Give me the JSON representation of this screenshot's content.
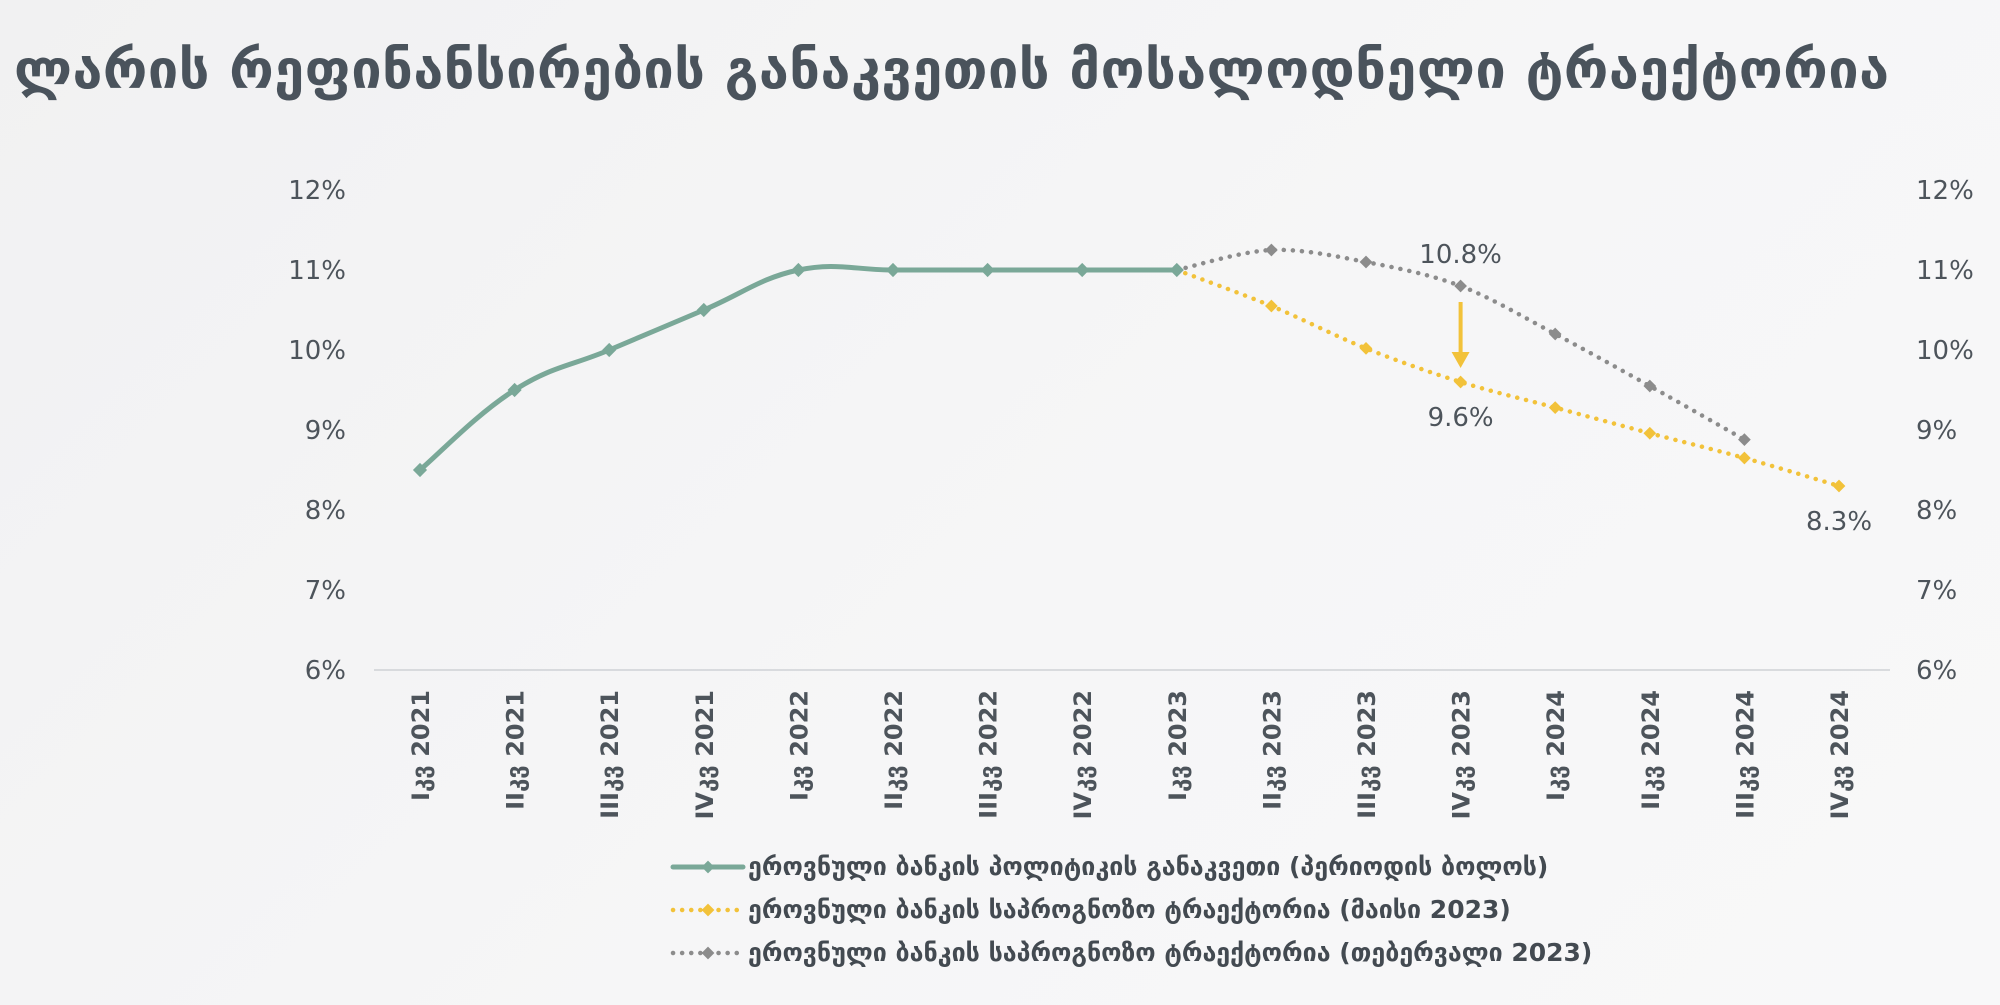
{
  "title": "ლარის რეფინანსირების განაკვეთის მოსალოდნელი ტრაექტორია",
  "chart_data": {
    "type": "line",
    "title": "ლარის რეფინანსირების განაკვეთის მოსალოდნელი ტრაექტორია",
    "categories": [
      "Iკვ 2021",
      "IIკვ 2021",
      "IIIკვ 2021",
      "IVკვ 2021",
      "Iკვ 2022",
      "IIკვ 2022",
      "IIIკვ 2022",
      "IVკვ 2022",
      "Iკვ 2023",
      "IIკვ 2023",
      "IIIკვ 2023",
      "IVკვ 2023",
      "Iკვ 2024",
      "IIკვ 2024",
      "IIIკვ 2024",
      "IVკვ 2024"
    ],
    "yticks": [
      "6%",
      "7%",
      "8%",
      "9%",
      "10%",
      "11%",
      "12%"
    ],
    "ylim": [
      6,
      12
    ],
    "secondary_axis": true,
    "grid": false,
    "legend_position": "bottom",
    "series": [
      {
        "name": "ეროვნული ბანკის პოლიტიკის განაკვეთი (პერიოდის ბოლოს)",
        "style": "solid",
        "color": "#7aa898",
        "values": [
          8.5,
          9.5,
          10.0,
          10.5,
          11.0,
          11.0,
          11.0,
          11.0,
          11.0,
          null,
          null,
          null,
          null,
          null,
          null,
          null
        ]
      },
      {
        "name": "ეროვნული ბანკის საპროგნოზო ტრაექტორია (მაისი 2023)",
        "style": "dotted",
        "color": "#f2c23a",
        "values": [
          null,
          null,
          null,
          null,
          null,
          null,
          null,
          null,
          11.0,
          10.55,
          10.02,
          9.6,
          9.28,
          8.96,
          8.65,
          8.3
        ]
      },
      {
        "name": "ეროვნული ბანკის საპროგნოზო ტრაექტორია (თებერვალი 2023)",
        "style": "dotted",
        "color": "#8c8c8c",
        "values": [
          null,
          null,
          null,
          null,
          null,
          null,
          null,
          null,
          11.0,
          11.25,
          11.1,
          10.8,
          10.2,
          9.55,
          8.88,
          null
        ]
      }
    ],
    "annotations": [
      {
        "text": "10.8%",
        "category": "IVკვ 2023",
        "value": 10.8,
        "series": 2
      },
      {
        "text": "9.6%",
        "category": "IVკვ 2023",
        "value": 9.6,
        "series": 1
      },
      {
        "text": "8.3%",
        "category": "IVკვ 2024",
        "value": 8.3,
        "series": 1
      }
    ],
    "arrow": {
      "category": "IVკვ 2023",
      "from": 10.6,
      "to": 9.8,
      "color": "#f2c23a"
    }
  }
}
